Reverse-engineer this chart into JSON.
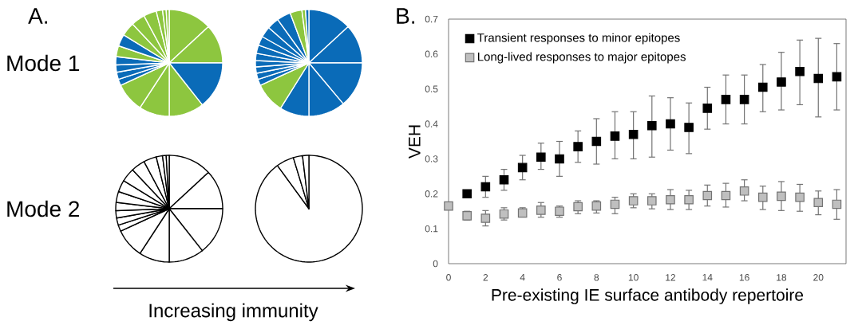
{
  "chart_data": [
    {
      "type": "pie",
      "title": "A.",
      "ylabel": "Mode 1",
      "categories": [
        null,
        null,
        null,
        null,
        null,
        null,
        null,
        null,
        null,
        null,
        null,
        null,
        null,
        null,
        null,
        null,
        null,
        null
      ],
      "values": [
        13.1,
        11.9,
        14.4,
        10.6,
        9.2,
        8.9,
        1.9,
        2.2,
        2.2,
        2.5,
        3.3,
        3.6,
        4.2,
        4.2,
        3.9,
        1.9,
        1.1,
        0.9
      ],
      "colors": [
        "#8dc63f",
        "#8dc63f",
        "#0a6bb8",
        "#8dc63f",
        "#8dc63f",
        "#8dc63f",
        "#0a6bb8",
        "#0a6bb8",
        "#0a6bb8",
        "#0a6bb8",
        "#8dc63f",
        "#0a6bb8",
        "#8dc63f",
        "#8dc63f",
        "#8dc63f",
        "#8dc63f",
        "#8dc63f",
        "#8dc63f"
      ]
    },
    {
      "type": "pie",
      "categories": [
        null,
        null,
        null,
        null,
        null,
        null,
        null,
        null,
        null,
        null,
        null,
        null,
        null,
        null,
        null,
        null,
        null,
        null,
        null
      ],
      "values": [
        13.1,
        11.9,
        13.9,
        11.1,
        8.9,
        9.2,
        1.9,
        1.9,
        1.9,
        1.9,
        2.2,
        2.5,
        2.8,
        3.3,
        3.6,
        4.2,
        3.6,
        1.1,
        1.0
      ],
      "colors": [
        "#0a6bb8",
        "#0a6bb8",
        "#0a6bb8",
        "#0a6bb8",
        "#0a6bb8",
        "#8dc63f",
        "#0a6bb8",
        "#0a6bb8",
        "#0a6bb8",
        "#0a6bb8",
        "#0a6bb8",
        "#0a6bb8",
        "#0a6bb8",
        "#0a6bb8",
        "#0a6bb8",
        "#0a6bb8",
        "#8dc63f",
        "#8dc63f",
        "#0a6bb8"
      ]
    },
    {
      "type": "pie",
      "ylabel": "Mode 2",
      "xlabel": "Increasing immunity",
      "categories": [
        null,
        null,
        null,
        null,
        null,
        null,
        null,
        null,
        null,
        null,
        null,
        null,
        null,
        null,
        null,
        null,
        null,
        null
      ],
      "values": [
        13.1,
        11.9,
        14.4,
        10.6,
        9.2,
        8.9,
        1.9,
        2.2,
        2.2,
        2.5,
        3.3,
        3.6,
        4.2,
        4.2,
        3.9,
        1.9,
        1.1,
        0.9
      ],
      "colors": [
        "#ffffff",
        "#ffffff",
        "#ffffff",
        "#ffffff",
        "#ffffff",
        "#ffffff",
        "#ffffff",
        "#ffffff",
        "#ffffff",
        "#ffffff",
        "#ffffff",
        "#ffffff",
        "#ffffff",
        "#ffffff",
        "#ffffff",
        "#ffffff",
        "#ffffff",
        "#ffffff"
      ]
    },
    {
      "type": "pie",
      "categories": [
        null,
        null,
        null,
        null
      ],
      "values": [
        90,
        5.3,
        2.8,
        1.9
      ],
      "colors": [
        "#ffffff",
        "#ffffff",
        "#ffffff",
        "#ffffff"
      ]
    },
    {
      "type": "scatter",
      "title": "B.",
      "xlabel": "Pre-existing IE surface antibody repertoire",
      "ylabel": "VEH",
      "xlim": [
        0,
        21.5
      ],
      "ylim": [
        0,
        0.7
      ],
      "xticks": [
        0,
        2,
        4,
        6,
        8,
        10,
        12,
        14,
        16,
        18,
        20
      ],
      "yticks": [
        0,
        0.1,
        0.2,
        0.3,
        0.4,
        0.5,
        0.6,
        0.7
      ],
      "marker": "square",
      "legend": "top left",
      "grid": false,
      "series": [
        {
          "name": "Transient responses to minor epitopes",
          "color": "#000000",
          "x": [
            1,
            2,
            3,
            4,
            5,
            6,
            7,
            8,
            9,
            10,
            11,
            12,
            13,
            14,
            15,
            16,
            17,
            18,
            19,
            20,
            21
          ],
          "values": [
            0.2,
            0.22,
            0.24,
            0.275,
            0.305,
            0.3,
            0.335,
            0.35,
            0.365,
            0.37,
            0.395,
            0.4,
            0.39,
            0.445,
            0.47,
            0.47,
            0.505,
            0.52,
            0.55,
            0.53,
            0.535
          ],
          "errors": [
            [
              0.19,
              0.21
            ],
            [
              0.19,
              0.25
            ],
            [
              0.21,
              0.27
            ],
            [
              0.24,
              0.31
            ],
            [
              0.27,
              0.345
            ],
            [
              0.25,
              0.35
            ],
            [
              0.29,
              0.38
            ],
            [
              0.285,
              0.415
            ],
            [
              0.3,
              0.435
            ],
            [
              0.3,
              0.435
            ],
            [
              0.305,
              0.48
            ],
            [
              0.325,
              0.475
            ],
            [
              0.315,
              0.46
            ],
            [
              0.385,
              0.505
            ],
            [
              0.4,
              0.54
            ],
            [
              0.4,
              0.54
            ],
            [
              0.435,
              0.57
            ],
            [
              0.44,
              0.605
            ],
            [
              0.455,
              0.64
            ],
            [
              0.42,
              0.645
            ],
            [
              0.44,
              0.63
            ]
          ]
        },
        {
          "name": "Long-lived responses to major epitopes",
          "color": "#bfbfbf",
          "x": [
            0,
            1,
            2,
            3,
            4,
            5,
            6,
            7,
            8,
            9,
            10,
            11,
            12,
            13,
            14,
            15,
            16,
            17,
            18,
            19,
            20,
            21
          ],
          "values": [
            0.165,
            0.137,
            0.13,
            0.142,
            0.145,
            0.153,
            0.15,
            0.163,
            0.165,
            0.17,
            0.18,
            0.18,
            0.183,
            0.183,
            0.195,
            0.195,
            0.208,
            0.19,
            0.193,
            0.19,
            0.175,
            0.17
          ],
          "errors": [
            null,
            [
              0.125,
              0.15
            ],
            [
              0.108,
              0.152
            ],
            [
              0.125,
              0.16
            ],
            [
              0.135,
              0.16
            ],
            [
              0.133,
              0.175
            ],
            [
              0.133,
              0.165
            ],
            [
              0.143,
              0.18
            ],
            [
              0.145,
              0.18
            ],
            [
              0.143,
              0.19
            ],
            [
              0.16,
              0.2
            ],
            [
              0.157,
              0.2
            ],
            [
              0.155,
              0.212
            ],
            [
              0.155,
              0.21
            ],
            [
              0.165,
              0.225
            ],
            [
              0.162,
              0.23
            ],
            [
              0.18,
              0.24
            ],
            [
              0.155,
              0.222
            ],
            [
              0.152,
              0.235
            ],
            [
              0.15,
              0.227
            ],
            [
              0.14,
              0.208
            ],
            [
              0.127,
              0.212
            ]
          ]
        }
      ]
    }
  ]
}
